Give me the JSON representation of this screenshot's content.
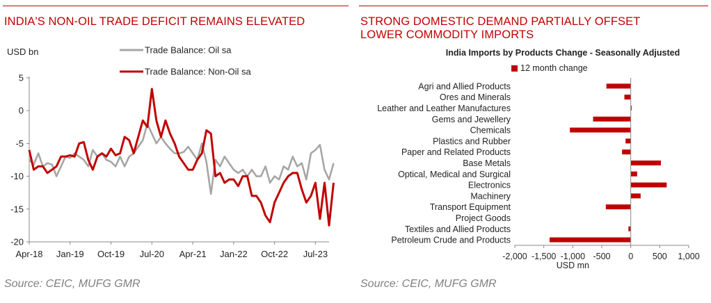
{
  "left_panel": {
    "title": "INDIA'S NON-OIL TRADE DEFICIT REMAINS ELEVATED",
    "source": "Source: CEIC, MUFG GMR"
  },
  "right_panel": {
    "title_line1": "STRONG DOMESTIC DEMAND PARTIALLY OFFSET",
    "title_line2": "LOWER COMMODITY IMPORTS",
    "source": "Source: CEIC, MUFG GMR"
  },
  "chart_data": [
    {
      "type": "line",
      "ylabel": "USD bn",
      "ylim": [
        -20,
        5
      ],
      "yticks": [
        5,
        0,
        -5,
        -10,
        -15,
        -20
      ],
      "xlim": [
        0,
        66
      ],
      "xticks": [
        {
          "i": 0,
          "label": "Apr-18"
        },
        {
          "i": 9,
          "label": "Jan-19"
        },
        {
          "i": 18,
          "label": "Oct-19"
        },
        {
          "i": 27,
          "label": "Jul-20"
        },
        {
          "i": 36,
          "label": "Apr-21"
        },
        {
          "i": 45,
          "label": "Jan-22"
        },
        {
          "i": 54,
          "label": "Oct-22"
        },
        {
          "i": 63,
          "label": "Jul-23"
        }
      ],
      "legend_position": "top",
      "series": [
        {
          "name": "Trade Balance: Oil sa",
          "color": "#a6a6a6",
          "values": [
            -7.5,
            -8.2,
            -6.5,
            -8.5,
            -8.0,
            -8.2,
            -10.0,
            -8.5,
            -7.0,
            -7.2,
            -6.5,
            -7.0,
            -7.5,
            -8.5,
            -6.0,
            -7.0,
            -6.5,
            -7.5,
            -7.8,
            -8.5,
            -7.0,
            -8.5,
            -7.0,
            -6.5,
            -5.5,
            -4.5,
            -2.0,
            -3.5,
            -5.0,
            -4.0,
            -5.0,
            -5.8,
            -6.5,
            -6.5,
            -6.3,
            -5.5,
            -6.5,
            -7.5,
            -5.0,
            -7.8,
            -12.7,
            -7.5,
            -8.5,
            -7.0,
            -8.0,
            -9.0,
            -9.5,
            -9.0,
            -10.0,
            -9.0,
            -10.0,
            -10.0,
            -8.5,
            -11.0,
            -10.0,
            -10.5,
            -8.5,
            -9.0,
            -7.0,
            -8.5,
            -8.0,
            -10.5,
            -6.5,
            -6.0,
            -5.2,
            -9.0,
            -10.5,
            -8.0
          ]
        },
        {
          "name": "Trade Balance: Non-Oil sa",
          "color": "#c00000",
          "values": [
            -6.0,
            -9.0,
            -8.5,
            -8.5,
            -9.5,
            -9.0,
            -8.5,
            -7.0,
            -7.0,
            -6.8,
            -7.0,
            -5.0,
            -4.8,
            -7.5,
            -9.0,
            -7.0,
            -6.5,
            -7.0,
            -5.8,
            -6.8,
            -6.5,
            -4.0,
            -4.5,
            -6.5,
            -4.0,
            -1.5,
            -2.5,
            3.3,
            -1.5,
            -4.0,
            -1.5,
            -3.5,
            -5.0,
            -7.0,
            -8.0,
            -9.0,
            -9.0,
            -7.5,
            -6.5,
            -3.0,
            -3.5,
            -10.0,
            -9.5,
            -11.0,
            -10.5,
            -10.5,
            -11.5,
            -10.0,
            -10.0,
            -13.0,
            -13.0,
            -14.0,
            -16.0,
            -17.0,
            -14.0,
            -12.5,
            -11.0,
            -10.0,
            -9.5,
            -9.5,
            -12.0,
            -14.0,
            -13.0,
            -11.0,
            -16.5,
            -11.0,
            -17.5,
            -11.0
          ]
        }
      ]
    },
    {
      "type": "bar",
      "orientation": "horizontal",
      "title": "India Imports by Products Change - Seasonally Adjusted",
      "xlabel": "USD mn",
      "xlim": [
        -2000,
        1000
      ],
      "xticks": [
        -2000,
        -1500,
        -1000,
        -500,
        0,
        500,
        1000
      ],
      "xtick_labels": [
        "-2,000",
        "-1,500",
        "-1,000",
        "-500",
        "0",
        "500",
        "1,000"
      ],
      "legend_position": "top",
      "categories": [
        "Agri and Allied Products",
        "Ores and Minerals",
        "Leather and Leather Manufactures",
        "Gems and Jewellery",
        "Chemicals",
        "Plastics and Rubber",
        "Paper and Related Products",
        "Base Metals",
        "Optical, Medical and Surgical",
        "Electronics",
        "Machinery",
        "Transport Equipment",
        "Project Goods",
        "Textiles and Allied Products",
        "Petroleum Crude and Products"
      ],
      "series": [
        {
          "name": "12 month change",
          "color": "#c00000",
          "values": [
            -420,
            -110,
            15,
            -650,
            -1050,
            -90,
            -150,
            520,
            110,
            620,
            170,
            -430,
            0,
            -40,
            -1400
          ]
        }
      ]
    }
  ]
}
